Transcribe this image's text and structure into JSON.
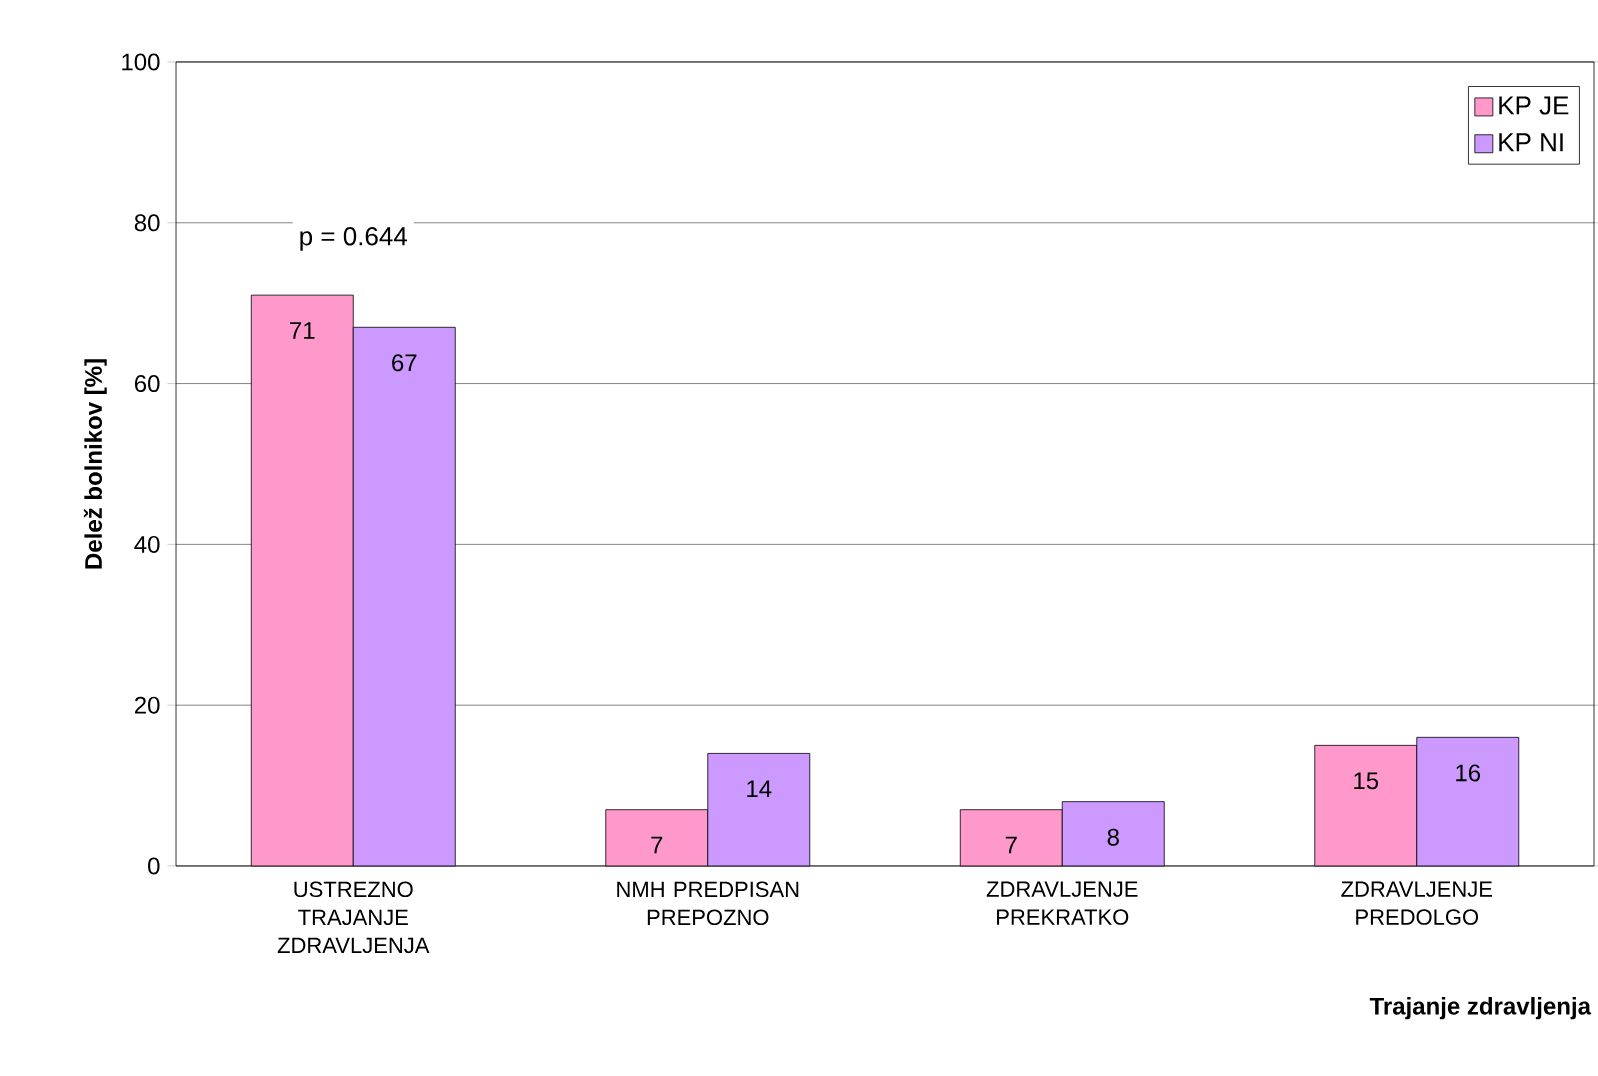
{
  "chart_data": {
    "type": "bar",
    "xlabel": "Trajanje zdravljenja",
    "ylabel": "Delež bolnikov [%]",
    "categories": [
      "USTREZNO TRAJANJE ZDRAVLJENJA",
      "NMH PREDPISAN PREPOZNO",
      "ZDRAVLJENJE PREKRATKO",
      "ZDRAVLJENJE PREDOLGO"
    ],
    "series": [
      {
        "name": "KP JE",
        "color": "#ff99cc",
        "values": [
          71,
          7,
          7,
          15
        ]
      },
      {
        "name": "KP NI",
        "color": "#cc99ff",
        "values": [
          67,
          14,
          8,
          16
        ]
      }
    ],
    "ylim": [
      0,
      100
    ],
    "yticks": [
      0,
      20,
      40,
      60,
      80,
      100
    ],
    "grid": "y",
    "legend": "top right",
    "data_labels": true,
    "annotations": [
      "p = 0.644"
    ]
  }
}
